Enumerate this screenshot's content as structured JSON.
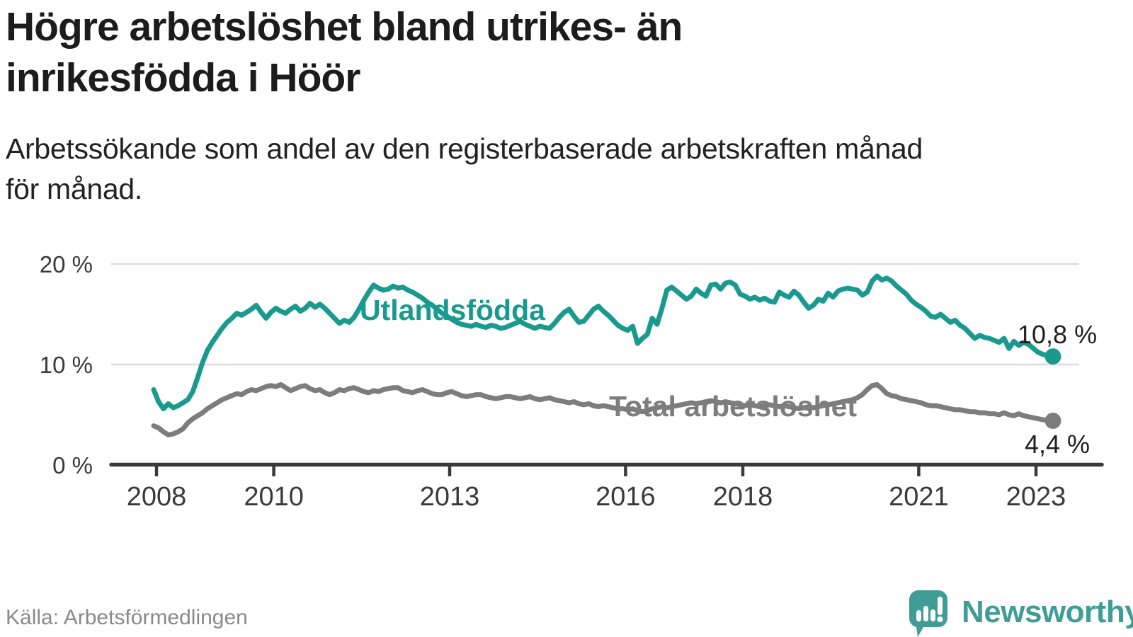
{
  "header": {
    "title_line1": "Högre arbetslöshet bland utrikes- än",
    "title_line2": "inrikesfödda i Höör",
    "subtitle_line1": "Arbetssökande som andel av den registerbaserade arbetskraften månad",
    "subtitle_line2": "för månad."
  },
  "footer": {
    "source": "Källa: Arbetsförmedlingen",
    "brand": "Newsworthy",
    "brand_color": "#3f9d96"
  },
  "chart_data": {
    "type": "line",
    "title": "Högre arbetslöshet bland utrikes- än inrikesfödda i Höör",
    "x_unit": "month",
    "x_start": "2008-01",
    "x_end": "2023-05",
    "ylim": [
      0,
      20
    ],
    "grid": "horizontal",
    "legend_position": "inline-labels",
    "y_ticks": [
      {
        "value": 0,
        "label": "0 %"
      },
      {
        "value": 10,
        "label": "10 %"
      },
      {
        "value": 20,
        "label": "20 %"
      }
    ],
    "x_ticks": [
      {
        "year": 2008,
        "label": "2008"
      },
      {
        "year": 2010,
        "label": "2010"
      },
      {
        "year": 2013,
        "label": "2013"
      },
      {
        "year": 2016,
        "label": "2016"
      },
      {
        "year": 2018,
        "label": "2018"
      },
      {
        "year": 2021,
        "label": "2021"
      },
      {
        "year": 2023,
        "label": "2023"
      }
    ],
    "series": [
      {
        "name": "Utlandsfödda",
        "color": "#1a9a8f",
        "end_label": "10,8 %",
        "end_value": 10.8,
        "values": [
          7.5,
          6.3,
          5.6,
          6.1,
          5.7,
          5.9,
          6.2,
          6.5,
          7.3,
          8.7,
          10.2,
          11.4,
          12.2,
          12.9,
          13.6,
          14.2,
          14.6,
          15.1,
          14.9,
          15.2,
          15.5,
          15.9,
          15.2,
          14.6,
          15.2,
          15.6,
          15.3,
          15.1,
          15.5,
          15.8,
          15.3,
          15.6,
          16.1,
          15.7,
          16.0,
          15.6,
          15.1,
          14.6,
          14.1,
          14.4,
          14.2,
          14.7,
          15.5,
          16.4,
          17.2,
          17.9,
          17.6,
          17.4,
          17.5,
          17.8,
          17.6,
          17.7,
          17.4,
          17.2,
          16.9,
          16.6,
          16.2,
          15.9,
          15.5,
          15.1,
          14.8,
          14.5,
          14.2,
          14.0,
          13.9,
          13.8,
          14.0,
          13.8,
          13.7,
          13.9,
          13.8,
          13.6,
          13.7,
          13.9,
          14.1,
          14.3,
          14.0,
          13.8,
          13.6,
          13.8,
          13.7,
          13.6,
          14.1,
          14.7,
          15.2,
          15.5,
          14.8,
          14.2,
          14.3,
          14.9,
          15.5,
          15.8,
          15.3,
          14.9,
          14.4,
          13.9,
          13.6,
          13.4,
          13.8,
          12.1,
          12.6,
          13.0,
          14.6,
          14.0,
          15.6,
          17.4,
          17.7,
          17.3,
          16.9,
          16.5,
          16.8,
          17.5,
          17.1,
          16.8,
          17.9,
          18.0,
          17.5,
          18.1,
          18.2,
          17.9,
          17.0,
          16.8,
          16.5,
          16.7,
          16.4,
          16.6,
          16.3,
          16.2,
          17.2,
          16.9,
          16.7,
          17.3,
          16.9,
          16.2,
          15.6,
          15.9,
          16.5,
          16.3,
          17.1,
          16.7,
          17.3,
          17.5,
          17.6,
          17.5,
          17.4,
          16.9,
          17.2,
          18.3,
          18.8,
          18.4,
          18.6,
          18.3,
          17.8,
          17.4,
          17.0,
          16.4,
          16.0,
          15.7,
          15.3,
          14.8,
          14.7,
          15.0,
          14.6,
          14.2,
          14.4,
          13.9,
          13.6,
          13.1,
          12.6,
          12.9,
          12.7,
          12.6,
          12.4,
          12.2,
          12.6,
          11.6,
          12.3,
          11.9,
          12.2,
          12.0,
          11.6,
          11.2,
          11.0,
          10.9,
          10.8
        ]
      },
      {
        "name": "Total arbetslöshet",
        "color": "#7d7d7d",
        "end_label": "4,4 %",
        "end_value": 4.4,
        "values": [
          3.9,
          3.7,
          3.3,
          3.0,
          3.1,
          3.3,
          3.6,
          4.2,
          4.6,
          4.9,
          5.2,
          5.6,
          5.9,
          6.2,
          6.5,
          6.7,
          6.9,
          7.1,
          7.0,
          7.3,
          7.5,
          7.4,
          7.6,
          7.8,
          7.9,
          7.8,
          8.0,
          7.7,
          7.4,
          7.6,
          7.8,
          7.9,
          7.6,
          7.4,
          7.5,
          7.2,
          7.0,
          7.2,
          7.5,
          7.4,
          7.6,
          7.7,
          7.5,
          7.3,
          7.2,
          7.4,
          7.3,
          7.5,
          7.6,
          7.7,
          7.7,
          7.4,
          7.3,
          7.2,
          7.4,
          7.5,
          7.3,
          7.1,
          7.0,
          7.0,
          7.2,
          7.3,
          7.1,
          6.9,
          6.8,
          6.9,
          7.0,
          7.0,
          6.8,
          6.7,
          6.6,
          6.7,
          6.8,
          6.8,
          6.7,
          6.6,
          6.7,
          6.8,
          6.6,
          6.5,
          6.6,
          6.7,
          6.5,
          6.4,
          6.3,
          6.2,
          6.3,
          6.1,
          6.0,
          6.1,
          5.9,
          5.8,
          5.9,
          5.8,
          5.7,
          5.6,
          5.6,
          5.5,
          5.6,
          5.4,
          5.3,
          5.4,
          5.6,
          5.7,
          5.8,
          5.7,
          5.8,
          5.9,
          6.0,
          6.1,
          6.2,
          6.1,
          6.2,
          6.3,
          6.4,
          6.3,
          6.2,
          6.3,
          6.2,
          6.1,
          6.0,
          5.9,
          6.0,
          5.9,
          5.8,
          5.9,
          6.0,
          5.9,
          5.8,
          5.9,
          5.8,
          5.7,
          5.6,
          5.7,
          5.8,
          5.7,
          5.8,
          5.9,
          6.0,
          6.1,
          6.2,
          6.3,
          6.4,
          6.5,
          6.7,
          7.0,
          7.5,
          7.9,
          8.0,
          7.6,
          7.1,
          6.9,
          6.8,
          6.6,
          6.5,
          6.4,
          6.3,
          6.2,
          6.0,
          5.9,
          5.9,
          5.8,
          5.7,
          5.6,
          5.5,
          5.5,
          5.4,
          5.3,
          5.3,
          5.2,
          5.2,
          5.1,
          5.1,
          5.0,
          5.2,
          5.0,
          4.9,
          5.1,
          4.9,
          4.8,
          4.7,
          4.6,
          4.5,
          4.4,
          4.4
        ]
      }
    ]
  }
}
